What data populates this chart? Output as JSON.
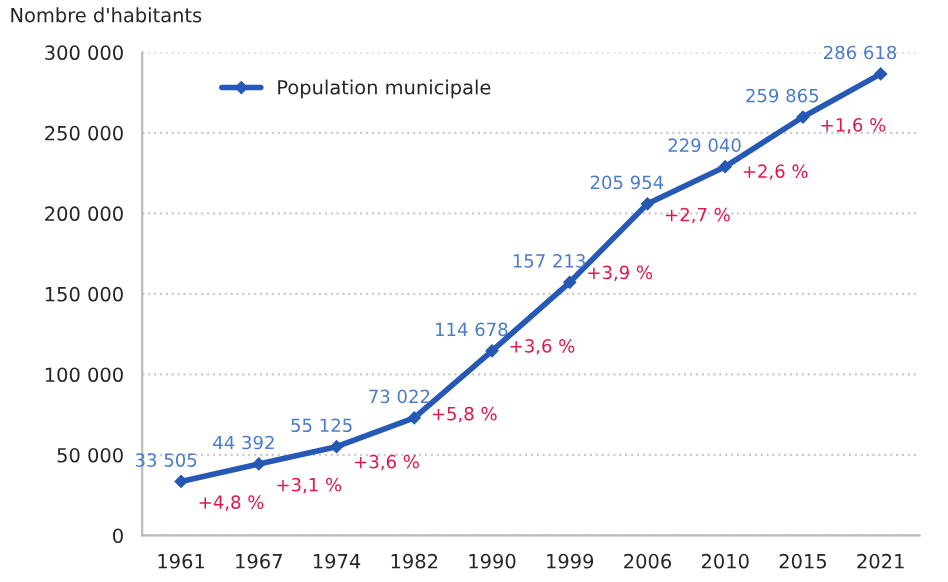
{
  "chart_data": {
    "type": "line",
    "ylabel": "Nombre d'habitants",
    "categories": [
      "1961",
      "1967",
      "1974",
      "1982",
      "1990",
      "1999",
      "2006",
      "2010",
      "2015",
      "2021"
    ],
    "series": [
      {
        "name": "Population municipale",
        "color": "#2659b5",
        "values": [
          33505,
          44392,
          55125,
          73022,
          114678,
          157213,
          205954,
          229040,
          259865,
          286618
        ],
        "value_labels": [
          "33 505",
          "44 392",
          "55 125",
          "73 022",
          "114 678",
          "157 213",
          "205 954",
          "229 040",
          "259 865",
          "286 618"
        ]
      }
    ],
    "annotations": [
      "+4,8 %",
      "+3,1 %",
      "+3,6 %",
      "+5,8 %",
      "+3,6 %",
      "+3,9 %",
      "+2,7 %",
      "+2,6 %",
      "+1,6 %"
    ],
    "ylim": [
      0,
      300000
    ],
    "yticks": [
      {
        "value": 0,
        "label": "0"
      },
      {
        "value": 50000,
        "label": "50 000"
      },
      {
        "value": 100000,
        "label": "100 000"
      },
      {
        "value": 150000,
        "label": "150 000"
      },
      {
        "value": 200000,
        "label": "200 000"
      },
      {
        "value": 250000,
        "label": "250 000"
      },
      {
        "value": 300000,
        "label": "300 000"
      }
    ],
    "grid": "y",
    "legend": "top left",
    "marker": "diamond",
    "line_style": "solid"
  }
}
